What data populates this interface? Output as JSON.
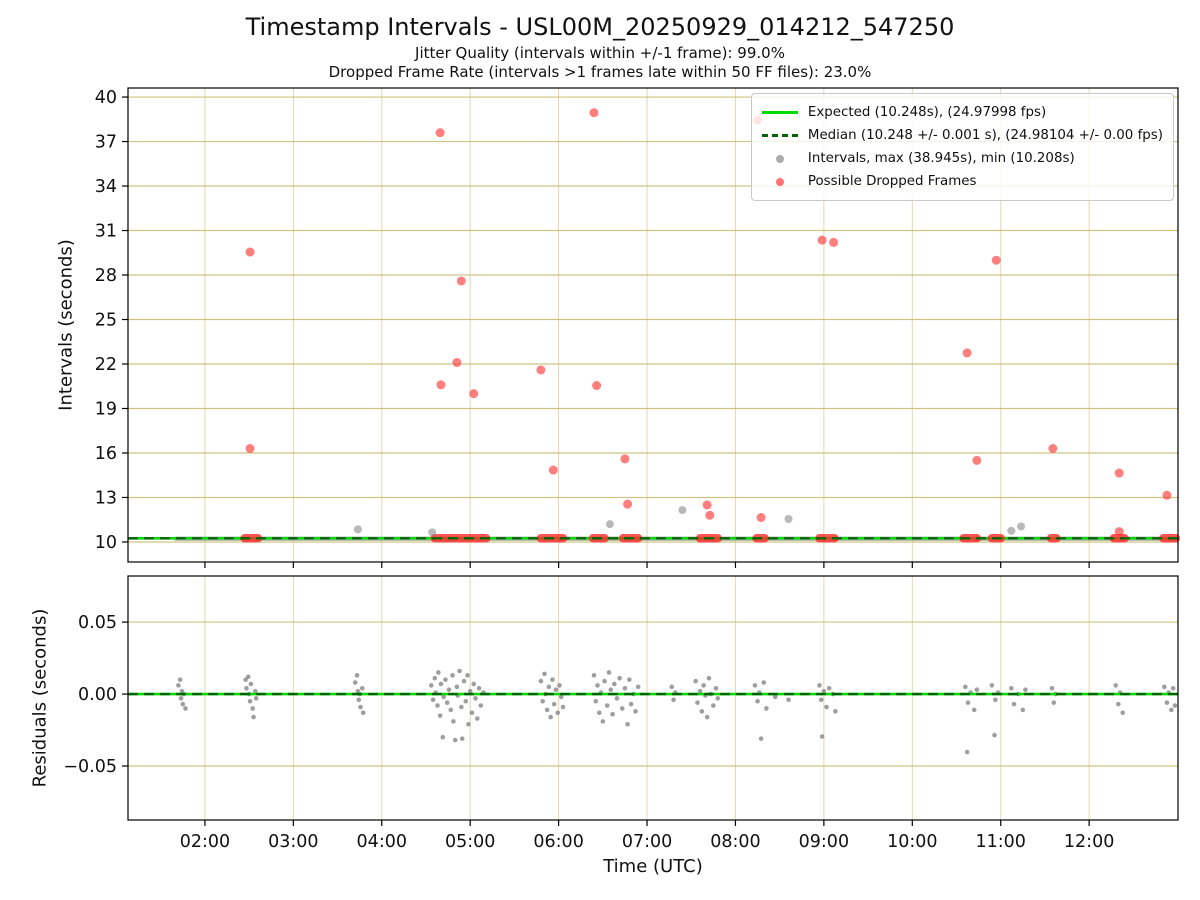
{
  "title": "Timestamp Intervals - USL00M_20250929_014212_547250",
  "subtitle1": "Jitter Quality (intervals within +/-1 frame): 99.0%",
  "subtitle2": "Dropped Frame Rate (intervals >1 frames late within 50 FF files): 23.0%",
  "chart_data": {
    "type": "scatter",
    "x": {
      "label": "Time (UTC)",
      "xlim": [
        1.13,
        13.005
      ],
      "tick_hours": [
        2,
        3,
        4,
        5,
        6,
        7,
        8,
        9,
        10,
        11,
        12
      ],
      "tick_labels": [
        "02:00",
        "03:00",
        "04:00",
        "05:00",
        "06:00",
        "07:00",
        "08:00",
        "09:00",
        "10:00",
        "11:00",
        "12:00"
      ]
    },
    "top": {
      "ylabel": "Intervals (seconds)",
      "ylim": [
        8.65,
        40.61
      ],
      "yticks": [
        10,
        13,
        16,
        19,
        22,
        25,
        28,
        31,
        34,
        37,
        40
      ],
      "expected_interval_s": 10.248,
      "expected_fps": 24.97998,
      "median_interval_s": 10.248,
      "median_fps": 24.98104,
      "max_interval_s": 38.945,
      "min_interval_s": 10.208,
      "baseline": {
        "start_hour": 1.67,
        "end_hour": 12.97,
        "value": 10.215
      },
      "dropped_segments": [
        [
          2.45,
          2.6
        ],
        [
          4.6,
          5.18
        ],
        [
          5.8,
          6.05
        ],
        [
          6.39,
          6.52
        ],
        [
          6.73,
          6.9
        ],
        [
          7.6,
          7.8
        ],
        [
          8.24,
          8.33
        ],
        [
          8.95,
          9.12
        ],
        [
          10.58,
          10.73
        ],
        [
          10.9,
          11.0
        ],
        [
          11.57,
          11.63
        ],
        [
          12.28,
          12.4
        ],
        [
          12.84,
          12.98
        ]
      ],
      "dropped_points": [
        [
          2.51,
          29.55
        ],
        [
          2.51,
          16.3
        ],
        [
          4.66,
          37.6
        ],
        [
          4.67,
          20.6
        ],
        [
          4.9,
          27.6
        ],
        [
          4.85,
          22.1
        ],
        [
          5.04,
          20.0
        ],
        [
          5.8,
          21.6
        ],
        [
          5.94,
          14.85
        ],
        [
          6.4,
          38.945
        ],
        [
          6.43,
          20.55
        ],
        [
          6.75,
          15.6
        ],
        [
          6.78,
          12.55
        ],
        [
          7.68,
          12.5
        ],
        [
          7.71,
          11.8
        ],
        [
          8.25,
          38.45
        ],
        [
          8.29,
          11.65
        ],
        [
          8.98,
          30.35
        ],
        [
          9.11,
          30.2
        ],
        [
          10.62,
          22.75
        ],
        [
          10.73,
          15.5
        ],
        [
          10.95,
          29.0
        ],
        [
          11.59,
          16.3
        ],
        [
          12.34,
          14.65
        ],
        [
          12.34,
          10.7
        ],
        [
          12.88,
          13.15
        ]
      ],
      "interval_points": [
        [
          3.73,
          10.85
        ],
        [
          4.57,
          10.65
        ],
        [
          6.58,
          11.2
        ],
        [
          7.4,
          12.15
        ],
        [
          8.6,
          11.55
        ],
        [
          11.12,
          10.75
        ],
        [
          11.23,
          11.05
        ]
      ]
    },
    "bottom": {
      "ylabel": "Residuals (seconds)",
      "ylim": [
        -0.0875,
        0.082
      ],
      "yticks": [
        -0.05,
        0.0,
        0.05
      ],
      "ytick_labels": [
        "−0.05",
        "0.00",
        "0.05"
      ],
      "zero_line": 0.0,
      "residual_points": [
        [
          1.7,
          0.006
        ],
        [
          1.72,
          0.01
        ],
        [
          1.73,
          -0.003
        ],
        [
          1.74,
          0.002
        ],
        [
          1.75,
          -0.007
        ],
        [
          1.76,
          0.0
        ],
        [
          1.78,
          -0.01
        ],
        [
          2.46,
          0.01
        ],
        [
          2.47,
          0.004
        ],
        [
          2.49,
          0.012
        ],
        [
          2.5,
          0.0
        ],
        [
          2.51,
          -0.005
        ],
        [
          2.52,
          0.007
        ],
        [
          2.54,
          -0.01
        ],
        [
          2.55,
          -0.016
        ],
        [
          2.57,
          0.002
        ],
        [
          2.58,
          -0.003
        ],
        [
          3.7,
          0.008
        ],
        [
          3.72,
          0.013
        ],
        [
          3.73,
          0.002
        ],
        [
          3.74,
          -0.004
        ],
        [
          3.75,
          0.0
        ],
        [
          3.76,
          -0.009
        ],
        [
          3.78,
          0.004
        ],
        [
          3.79,
          -0.013
        ],
        [
          4.56,
          0.006
        ],
        [
          4.58,
          -0.004
        ],
        [
          4.6,
          0.011
        ],
        [
          4.61,
          0.001
        ],
        [
          4.63,
          -0.008
        ],
        [
          4.64,
          0.015
        ],
        [
          4.66,
          -0.015
        ],
        [
          4.67,
          0.007
        ],
        [
          4.69,
          -0.03
        ],
        [
          4.7,
          -0.002
        ],
        [
          4.72,
          0.01
        ],
        [
          4.74,
          -0.006
        ],
        [
          4.76,
          0.003
        ],
        [
          4.78,
          -0.011
        ],
        [
          4.8,
          0.013
        ],
        [
          4.81,
          -0.019
        ],
        [
          4.83,
          -0.032
        ],
        [
          4.85,
          0.005
        ],
        [
          4.86,
          -0.001
        ],
        [
          4.88,
          0.016
        ],
        [
          4.9,
          -0.009
        ],
        [
          4.91,
          -0.031
        ],
        [
          4.93,
          0.009
        ],
        [
          4.95,
          -0.005
        ],
        [
          4.97,
          0.013
        ],
        [
          4.98,
          -0.021
        ],
        [
          5.0,
          0.002
        ],
        [
          5.02,
          -0.013
        ],
        [
          5.04,
          0.007
        ],
        [
          5.06,
          -0.003
        ],
        [
          5.08,
          -0.017
        ],
        [
          5.1,
          0.004
        ],
        [
          5.12,
          -0.008
        ],
        [
          5.15,
          0.001
        ],
        [
          5.8,
          0.009
        ],
        [
          5.82,
          -0.005
        ],
        [
          5.84,
          0.014
        ],
        [
          5.85,
          0.0
        ],
        [
          5.87,
          -0.011
        ],
        [
          5.89,
          0.005
        ],
        [
          5.91,
          -0.016
        ],
        [
          5.93,
          0.01
        ],
        [
          5.95,
          -0.007
        ],
        [
          5.97,
          0.003
        ],
        [
          5.99,
          -0.013
        ],
        [
          6.01,
          0.006
        ],
        [
          6.03,
          -0.002
        ],
        [
          6.05,
          -0.009
        ],
        [
          6.4,
          0.013
        ],
        [
          6.42,
          -0.005
        ],
        [
          6.44,
          0.006
        ],
        [
          6.46,
          -0.013
        ],
        [
          6.48,
          0.001
        ],
        [
          6.5,
          -0.019
        ],
        [
          6.52,
          0.009
        ],
        [
          6.55,
          -0.008
        ],
        [
          6.57,
          0.015
        ],
        [
          6.59,
          0.003
        ],
        [
          6.61,
          -0.014
        ],
        [
          6.63,
          0.007
        ],
        [
          6.66,
          -0.003
        ],
        [
          6.69,
          0.011
        ],
        [
          6.72,
          -0.01
        ],
        [
          6.75,
          0.004
        ],
        [
          6.78,
          -0.021
        ],
        [
          6.8,
          0.01
        ],
        [
          6.82,
          -0.007
        ],
        [
          6.85,
          0.0
        ],
        [
          6.87,
          -0.012
        ],
        [
          6.9,
          0.005
        ],
        [
          7.28,
          0.005
        ],
        [
          7.3,
          -0.004
        ],
        [
          7.32,
          0.001
        ],
        [
          7.55,
          0.009
        ],
        [
          7.57,
          -0.006
        ],
        [
          7.6,
          0.002
        ],
        [
          7.62,
          -0.012
        ],
        [
          7.64,
          0.006
        ],
        [
          7.66,
          -0.001
        ],
        [
          7.68,
          -0.016
        ],
        [
          7.7,
          0.011
        ],
        [
          7.72,
          0.0
        ],
        [
          7.75,
          -0.008
        ],
        [
          7.78,
          0.004
        ],
        [
          7.8,
          -0.003
        ],
        [
          8.22,
          0.006
        ],
        [
          8.25,
          -0.005
        ],
        [
          8.27,
          0.001
        ],
        [
          8.29,
          -0.031
        ],
        [
          8.32,
          0.008
        ],
        [
          8.35,
          -0.01
        ],
        [
          8.45,
          -0.002
        ],
        [
          8.6,
          -0.004
        ],
        [
          8.95,
          0.006
        ],
        [
          8.97,
          -0.004
        ],
        [
          8.98,
          -0.0295
        ],
        [
          9.0,
          0.002
        ],
        [
          9.03,
          -0.009
        ],
        [
          9.06,
          0.004
        ],
        [
          9.1,
          0.0
        ],
        [
          9.13,
          -0.012
        ],
        [
          10.6,
          0.005
        ],
        [
          10.62,
          -0.0403
        ],
        [
          10.63,
          -0.006
        ],
        [
          10.66,
          0.001
        ],
        [
          10.7,
          -0.011
        ],
        [
          10.73,
          0.003
        ],
        [
          10.9,
          0.006
        ],
        [
          10.93,
          -0.0285
        ],
        [
          10.94,
          -0.004
        ],
        [
          10.97,
          0.001
        ],
        [
          11.12,
          0.004
        ],
        [
          11.15,
          -0.007
        ],
        [
          11.2,
          0.0
        ],
        [
          11.25,
          -0.011
        ],
        [
          11.28,
          0.003
        ],
        [
          11.58,
          0.004
        ],
        [
          11.6,
          -0.006
        ],
        [
          11.62,
          0.0
        ],
        [
          12.3,
          0.006
        ],
        [
          12.33,
          -0.007
        ],
        [
          12.35,
          0.001
        ],
        [
          12.38,
          -0.013
        ],
        [
          12.85,
          0.005
        ],
        [
          12.88,
          -0.006
        ],
        [
          12.9,
          0.001
        ],
        [
          12.93,
          -0.011
        ],
        [
          12.95,
          0.004
        ],
        [
          12.97,
          -0.008
        ]
      ]
    },
    "legend": {
      "entries": [
        {
          "marker": "line",
          "color_key": "expected",
          "label": "Expected (10.248s), (24.97998 fps)"
        },
        {
          "marker": "dashed",
          "color_key": "median",
          "label": "Median (10.248 +/- 0.001 s), (24.98104 +/- 0.00 fps)"
        },
        {
          "marker": "dot",
          "color_key": "intervals",
          "label": "Intervals, max (38.945s), min (10.208s)"
        },
        {
          "marker": "dot",
          "color_key": "dropped",
          "label": "Possible Dropped Frames"
        }
      ]
    },
    "colors": {
      "expected": "#00dc00",
      "median": "#006400",
      "intervals": "#808080",
      "dropped": "#ff2a2a",
      "grid": "#c9ba6b",
      "text": "#111111"
    }
  }
}
